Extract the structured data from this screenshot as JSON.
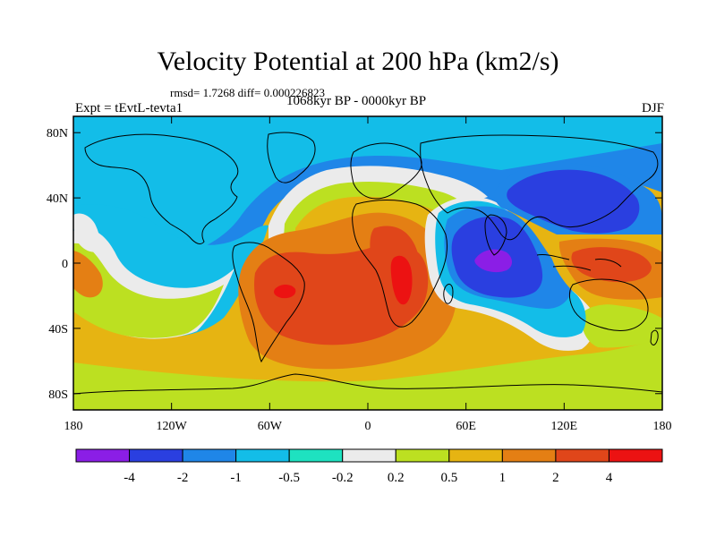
{
  "title": "Velocity Potential at 200 hPa (km2/s)",
  "stats": "rmsd= 1.7268 diff= 0.000226823",
  "experiment": "Expt = tEvtL-tevta1",
  "period": "1068kyr BP - 0000kyr BP",
  "season": "DJF",
  "y_ticks": [
    {
      "label": "80N",
      "lat": 80
    },
    {
      "label": "40N",
      "lat": 40
    },
    {
      "label": "0",
      "lat": 0
    },
    {
      "label": "40S",
      "lat": -40
    },
    {
      "label": "80S",
      "lat": -80
    }
  ],
  "x_ticks": [
    {
      "label": "180",
      "lon": -180
    },
    {
      "label": "120W",
      "lon": -120
    },
    {
      "label": "60W",
      "lon": -60
    },
    {
      "label": "0",
      "lon": 0
    },
    {
      "label": "60E",
      "lon": 60
    },
    {
      "label": "120E",
      "lon": 120
    },
    {
      "label": "180",
      "lon": 180
    }
  ],
  "colorbar": {
    "colors": [
      "#8b1ee6",
      "#2a3fe0",
      "#1f86e8",
      "#13bde8",
      "#1ee2c0",
      "#ebebeb",
      "#bce021",
      "#e6b412",
      "#e47f14",
      "#e0461a",
      "#ec1212"
    ],
    "labels": [
      "-4",
      "-2",
      "-1",
      "-0.5",
      "-0.2",
      "0.2",
      "0.5",
      "1",
      "2",
      "4"
    ]
  }
}
